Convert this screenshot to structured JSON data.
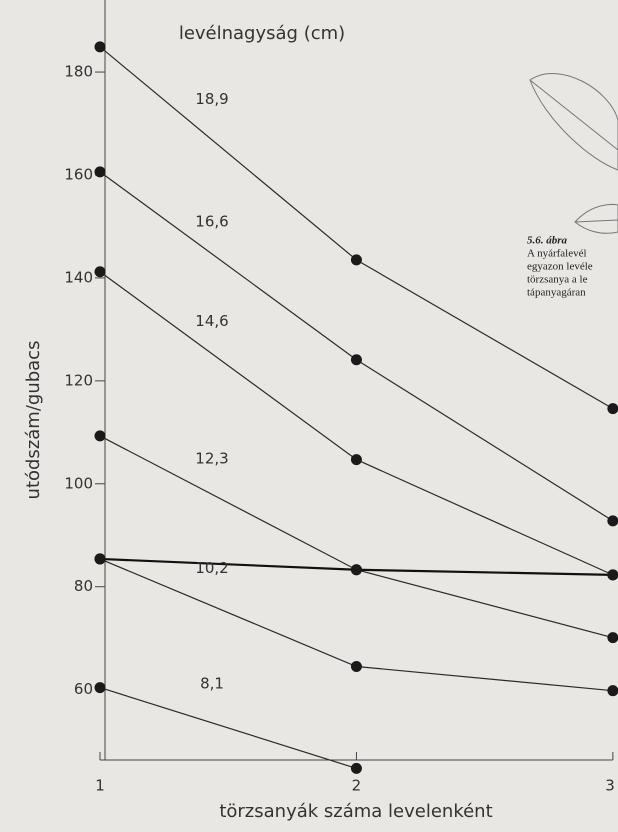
{
  "chart_data": {
    "type": "line",
    "title": "levélnagyság (cm)",
    "xlabel": "törzsanyák száma levelenként",
    "ylabel": "utódszám/gubacs",
    "x": [
      1,
      2,
      3
    ],
    "series": [
      {
        "name": "18,9",
        "color": "#2a2a2a",
        "values": [
          184.9,
          143.5,
          114.6
        ]
      },
      {
        "name": "16,6",
        "color": "#2a2a2a",
        "values": [
          160.6,
          124.1,
          92.8
        ]
      },
      {
        "name": "14,6",
        "color": "#2a2a2a",
        "values": [
          141.2,
          104.7,
          82.3
        ]
      },
      {
        "name": "12,3",
        "color": "#2a2a2a",
        "values": [
          109.3,
          83.3,
          70.1
        ]
      },
      {
        "name": null,
        "color": "#111111",
        "values": [
          85.4,
          83.3,
          82.3
        ]
      },
      {
        "name": "10,2",
        "color": "#2a2a2a",
        "values": [
          85.4,
          64.5,
          59.8
        ]
      },
      {
        "name": "8,1",
        "color": "#2a2a2a",
        "values": [
          60.4,
          44.7,
          null
        ]
      }
    ],
    "xlim": [
      0.61,
      3.02
    ],
    "ylim": [
      44,
      194
    ],
    "xticks": [
      1,
      2,
      3
    ],
    "yticks": [
      60,
      80,
      100,
      120,
      140,
      160,
      180
    ],
    "caption": {
      "label": "5.6. ábra",
      "lines": [
        "A nyárfalevél",
        "egyazon levéle",
        "törzsanya a le",
        "tápanyagáran"
      ]
    }
  }
}
